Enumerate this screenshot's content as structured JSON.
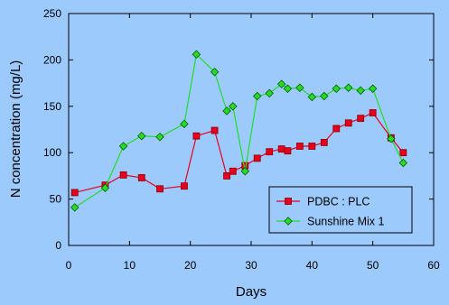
{
  "chart_data": {
    "type": "line",
    "title": "",
    "xlabel": "Days",
    "ylabel": "N concentration (mg/L)",
    "xlim": [
      0,
      60
    ],
    "ylim": [
      0,
      250
    ],
    "xticks": [
      0,
      10,
      20,
      30,
      40,
      50,
      60
    ],
    "yticks": [
      0,
      50,
      100,
      150,
      200,
      250
    ],
    "grid": false,
    "legend_position": "bottom-right",
    "series": [
      {
        "name": "PDBC : PLC",
        "color": "#e8001c",
        "marker": "square",
        "x": [
          1,
          6,
          9,
          12,
          15,
          19,
          21,
          24,
          26,
          27,
          29,
          31,
          33,
          35,
          36,
          38,
          40,
          42,
          44,
          46,
          48,
          50,
          53,
          55
        ],
        "y": [
          57,
          65,
          76,
          73,
          61,
          64,
          118,
          124,
          75,
          80,
          86,
          94,
          101,
          104,
          102,
          107,
          107,
          111,
          126,
          132,
          137,
          143,
          116,
          100
        ]
      },
      {
        "name": "Sunshine Mix 1",
        "color": "#22dd22",
        "marker": "diamond",
        "x": [
          1,
          6,
          9,
          12,
          15,
          19,
          21,
          24,
          26,
          27,
          29,
          31,
          33,
          35,
          36,
          38,
          40,
          42,
          44,
          46,
          48,
          50,
          53,
          55
        ],
        "y": [
          41,
          62,
          107,
          118,
          117,
          131,
          206,
          187,
          145,
          150,
          80,
          161,
          164,
          174,
          169,
          170,
          160,
          161,
          169,
          170,
          167,
          169,
          115,
          89
        ]
      }
    ]
  }
}
